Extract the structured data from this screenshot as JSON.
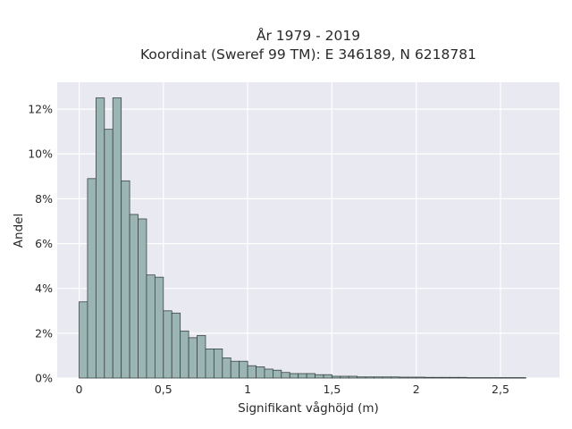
{
  "chart_data": {
    "type": "bar",
    "title": "År 1979 - 2019",
    "subtitle": "Koordinat (Sweref 99 TM): E 346189, N 6218781",
    "xlabel": "Signifikant våghöjd (m)",
    "ylabel": "Andel",
    "xlim": [
      -0.13,
      2.85
    ],
    "ylim": [
      0,
      13.2
    ],
    "bin_width": 0.05,
    "bin_start": 0.0,
    "values": [
      3.4,
      8.9,
      12.5,
      11.1,
      12.5,
      8.8,
      7.3,
      7.1,
      4.6,
      4.5,
      3.0,
      2.9,
      2.1,
      1.8,
      1.9,
      1.3,
      1.3,
      0.9,
      0.75,
      0.75,
      0.55,
      0.5,
      0.4,
      0.35,
      0.25,
      0.2,
      0.2,
      0.2,
      0.15,
      0.15,
      0.08,
      0.08,
      0.08,
      0.05,
      0.05,
      0.05,
      0.05,
      0.05,
      0.04,
      0.04,
      0.04,
      0.03,
      0.03,
      0.03,
      0.03,
      0.03,
      0.02,
      0.02,
      0.02,
      0.02,
      0.02,
      0.02,
      0.02,
      0.0,
      0.0,
      0.0,
      0.0,
      0.0,
      0.0,
      0.0,
      0.0,
      0.0,
      0.02,
      0.0,
      0.0,
      0.0,
      0.0,
      0.0,
      0.0,
      0.0,
      0.0,
      0.0,
      0.0,
      0.0,
      0.0,
      0.0,
      0.0,
      0.0,
      0.0,
      0.0,
      0.0,
      0.0,
      0.0,
      0.0,
      0.02
    ],
    "x_ticks": [
      0,
      0.5,
      1,
      1.5,
      2,
      2.5
    ],
    "x_tick_labels": [
      "0",
      "0,5",
      "1",
      "1,5",
      "2",
      "2,5"
    ],
    "y_ticks": [
      0,
      2,
      4,
      6,
      8,
      10,
      12
    ],
    "y_tick_labels": [
      "0%",
      "2%",
      "4%",
      "6%",
      "8%",
      "10%",
      "12%"
    ],
    "grid": true,
    "colors": {
      "plot_background": "#e9e9f1",
      "grid": "#ffffff",
      "bar_fill": "#9bb4b4",
      "bar_edge": "#3b4545"
    }
  }
}
